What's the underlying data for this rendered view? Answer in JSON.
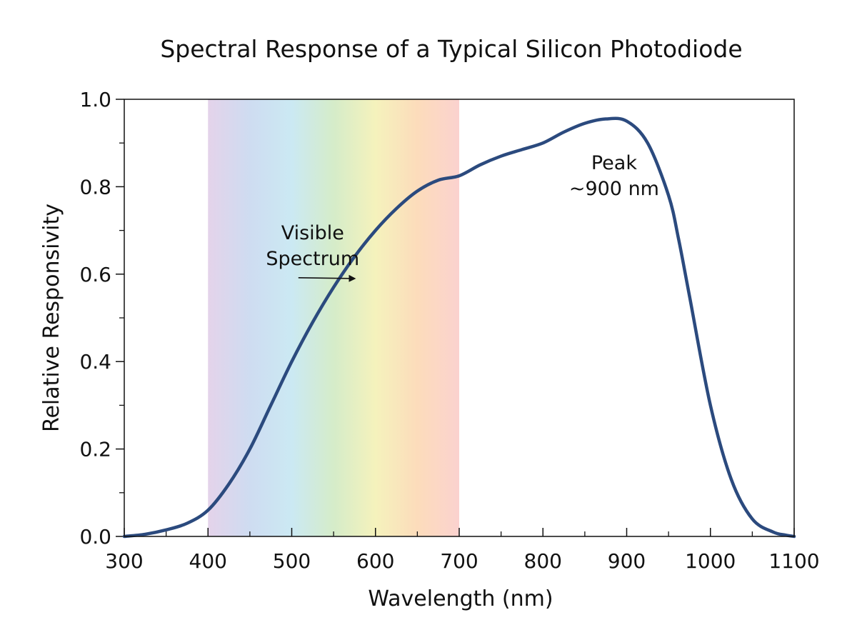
{
  "chart_data": {
    "type": "line",
    "title": "Spectral Response of a Typical Silicon Photodiode",
    "xlabel": "Wavelength (nm)",
    "ylabel": "Relative Responsivity",
    "xlim": [
      300,
      1100
    ],
    "ylim": [
      0.0,
      1.0
    ],
    "x_ticks": [
      300,
      400,
      500,
      600,
      700,
      800,
      900,
      1000,
      1100
    ],
    "x_tick_labels": [
      "300",
      "400",
      "500",
      "600",
      "700",
      "800",
      "900",
      "1000",
      "1100"
    ],
    "y_ticks": [
      0.0,
      0.2,
      0.4,
      0.6,
      0.8,
      1.0
    ],
    "y_tick_labels": [
      "0.0",
      "0.2",
      "0.4",
      "0.6",
      "0.8",
      "1.0"
    ],
    "grid": false,
    "line_color": "#2b4a7e",
    "series": [
      {
        "x": [
          300,
          325,
          350,
          375,
          400,
          425,
          450,
          475,
          500,
          525,
          550,
          575,
          600,
          625,
          650,
          675,
          700,
          725,
          750,
          775,
          800,
          825,
          850,
          875,
          900,
          925,
          950,
          962,
          975,
          1000,
          1025,
          1050,
          1075,
          1090,
          1100
        ],
        "y": [
          0.0,
          0.005,
          0.015,
          0.03,
          0.06,
          0.12,
          0.2,
          0.3,
          0.4,
          0.49,
          0.57,
          0.64,
          0.7,
          0.75,
          0.79,
          0.815,
          0.825,
          0.85,
          0.87,
          0.885,
          0.9,
          0.925,
          0.945,
          0.955,
          0.95,
          0.9,
          0.78,
          0.68,
          0.55,
          0.3,
          0.13,
          0.04,
          0.01,
          0.003,
          0.0
        ]
      }
    ],
    "shaded_region": {
      "label": "Visible Spectrum",
      "x_range": [
        400,
        700
      ],
      "colors": [
        "#e4d3ea",
        "#cedcf1",
        "#cbe9f3",
        "#d5ecc9",
        "#f5f2bc",
        "#fcdcbb",
        "#fbd2cf"
      ]
    },
    "annotations": [
      {
        "id": "visible",
        "lines": [
          "Visible",
          "Spectrum"
        ],
        "x": 525,
        "y": 0.68,
        "arrow_to": [
          575,
          0.59
        ]
      },
      {
        "id": "peak",
        "lines": [
          "Peak",
          "~900 nm"
        ],
        "x": 885,
        "y": 0.84
      }
    ]
  }
}
